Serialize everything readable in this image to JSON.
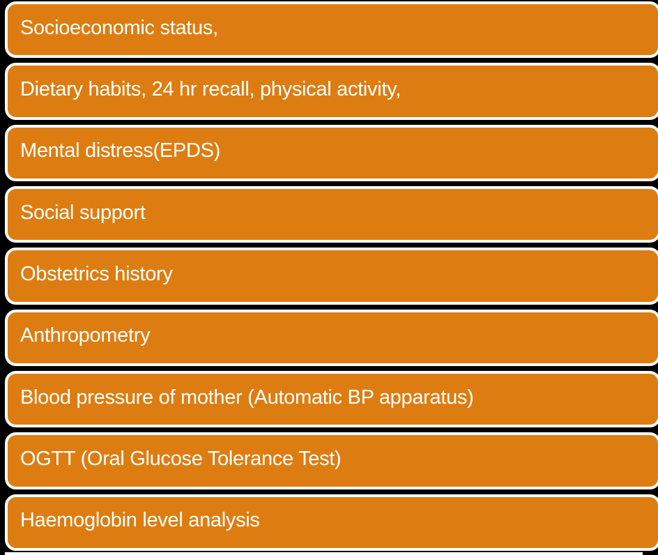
{
  "figure": {
    "type": "vertical-list-diagram",
    "background_color": "#000000",
    "box_fill_color": "#DD7D11",
    "box_border_color": "#FFFFFF",
    "text_color": "#FFFFFF",
    "items": [
      {
        "label": "Socioeconomic status,"
      },
      {
        "label": "Dietary habits, 24 hr recall, physical activity,"
      },
      {
        "label": "Mental distress(EPDS)"
      },
      {
        "label": "Social support"
      },
      {
        "label": "Obstetrics history"
      },
      {
        "label": "Anthropometry"
      },
      {
        "label": "Blood pressure of mother (Automatic BP apparatus)"
      },
      {
        "label": "OGTT (Oral Glucose Tolerance Test)"
      },
      {
        "label": "Haemoglobin level analysis"
      }
    ]
  }
}
